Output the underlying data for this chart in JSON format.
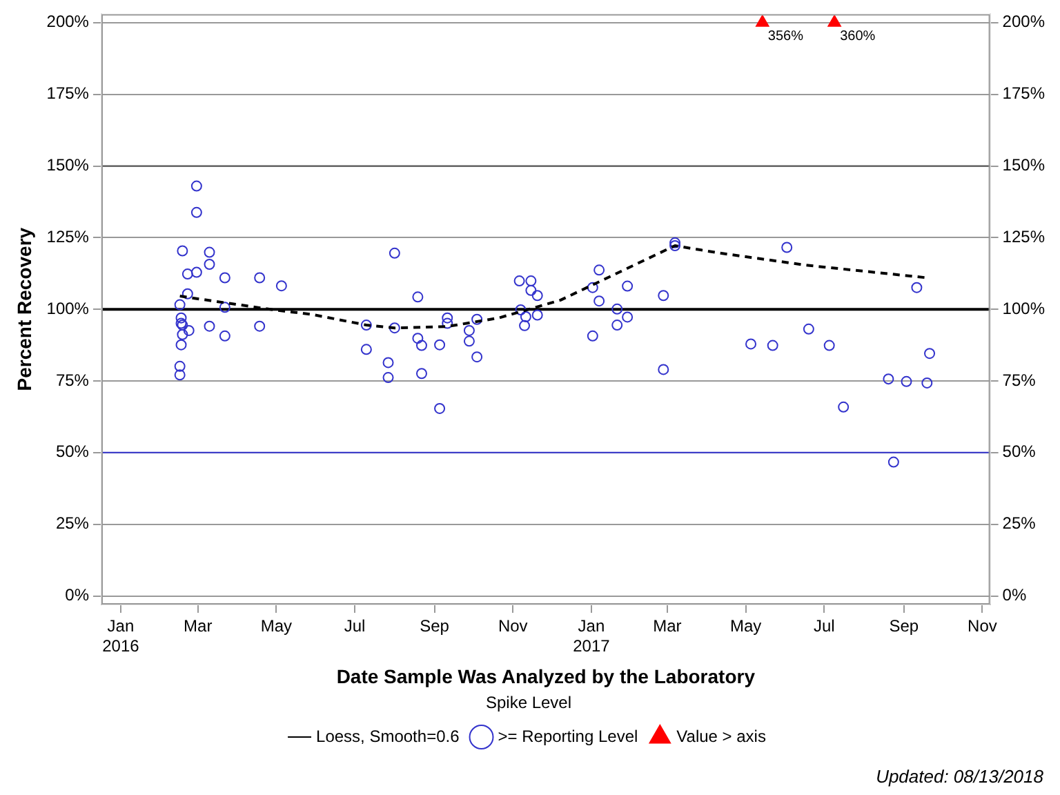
{
  "chart_data": {
    "type": "scatter",
    "xlabel": "Date Sample Was Analyzed by the Laboratory",
    "ylabel": "Percent Recovery",
    "legend_title": "Spike Level",
    "legend": "bottom",
    "grid": "y",
    "xlim": [
      "2015-12-17",
      "2017-11-07"
    ],
    "xticks": [
      {
        "value": "2016-01-01",
        "label": "Jan\n2016"
      },
      {
        "value": "2016-03-01",
        "label": "Mar"
      },
      {
        "value": "2016-05-01",
        "label": "May"
      },
      {
        "value": "2016-07-01",
        "label": "Jul"
      },
      {
        "value": "2016-09-01",
        "label": "Sep"
      },
      {
        "value": "2016-11-01",
        "label": "Nov"
      },
      {
        "value": "2017-01-01",
        "label": "Jan\n2017"
      },
      {
        "value": "2017-03-01",
        "label": "Mar"
      },
      {
        "value": "2017-05-01",
        "label": "May"
      },
      {
        "value": "2017-07-01",
        "label": "Jul"
      },
      {
        "value": "2017-09-01",
        "label": "Sep"
      },
      {
        "value": "2017-11-01",
        "label": "Nov"
      }
    ],
    "ylim": [
      -3,
      203
    ],
    "yticks": [
      {
        "value": 0,
        "label": "0%"
      },
      {
        "value": 25,
        "label": "25%"
      },
      {
        "value": 50,
        "label": "50%"
      },
      {
        "value": 75,
        "label": "75%"
      },
      {
        "value": 100,
        "label": "100%"
      },
      {
        "value": 125,
        "label": "125%"
      },
      {
        "value": 150,
        "label": "150%"
      },
      {
        "value": 175,
        "label": "175%"
      },
      {
        "value": 200,
        "label": "200%"
      }
    ],
    "y2lim": [
      -3,
      203
    ],
    "y2ticks": [
      {
        "value": 0,
        "label": "0%"
      },
      {
        "value": 25,
        "label": "25%"
      },
      {
        "value": 50,
        "label": "50%"
      },
      {
        "value": 75,
        "label": "75%"
      },
      {
        "value": 100,
        "label": "100%"
      },
      {
        "value": 125,
        "label": "125%"
      },
      {
        "value": 150,
        "label": "150%"
      },
      {
        "value": 175,
        "label": "175%"
      },
      {
        "value": 200,
        "label": "200%"
      }
    ],
    "ref_lines": [
      {
        "axis": "y",
        "value": 100,
        "color": "#000000"
      },
      {
        "axis": "y",
        "value": 150,
        "color": "#555555"
      },
      {
        "axis": "y",
        "value": 50,
        "color": "#3333cc"
      }
    ],
    "series": [
      {
        "name": "Loess, Smooth=0.6",
        "type": "line",
        "color": "#000000",
        "line_style": "dashed",
        "marker": "none",
        "x": [
          "2016-02-16",
          "2016-03-22",
          "2016-05-01",
          "2016-05-29",
          "2016-07-10",
          "2016-08-01",
          "2016-09-11",
          "2016-10-21",
          "2016-12-08",
          "2017-03-07",
          "2017-04-11",
          "2017-06-17",
          "2017-09-19"
        ],
        "values": [
          104.6,
          102.3,
          99.7,
          98.2,
          94.5,
          93.5,
          94.0,
          97.0,
          103.2,
          122.2,
          119.6,
          115.4,
          111.0
        ]
      },
      {
        "name": ">= Reporting Level",
        "color": "#3333cc",
        "marker": "circle",
        "x": [
          "2016-02-29",
          "2016-02-29",
          "2016-02-18",
          "2016-03-10",
          "2016-03-10",
          "2016-02-22",
          "2016-02-29",
          "2016-03-22",
          "2016-04-18",
          "2016-05-05",
          "2016-02-22",
          "2016-02-16",
          "2016-03-22",
          "2016-02-17",
          "2016-02-17",
          "2016-02-18",
          "2016-02-23",
          "2016-03-10",
          "2016-04-18",
          "2016-02-18",
          "2016-03-22",
          "2016-02-17",
          "2016-02-16",
          "2016-02-16",
          "2016-08-01",
          "2016-08-19",
          "2016-07-10",
          "2016-08-01",
          "2016-09-11",
          "2016-09-11",
          "2016-10-04",
          "2016-09-28",
          "2016-09-28",
          "2016-10-04",
          "2016-07-10",
          "2016-08-19",
          "2016-08-22",
          "2016-09-05",
          "2016-07-27",
          "2016-07-27",
          "2016-08-22",
          "2016-09-05",
          "2016-11-06",
          "2016-11-15",
          "2016-11-15",
          "2016-11-20",
          "2016-11-07",
          "2016-11-11",
          "2016-11-10",
          "2016-11-20",
          "2017-01-02",
          "2017-01-07",
          "2017-01-07",
          "2017-01-02",
          "2017-01-21",
          "2017-01-21",
          "2017-01-29",
          "2017-01-29",
          "2017-02-26",
          "2017-02-26",
          "2017-03-07",
          "2017-03-07",
          "2017-05-05",
          "2017-05-22",
          "2017-06-02",
          "2017-09-11",
          "2017-06-19",
          "2017-07-05",
          "2017-07-16",
          "2017-08-20",
          "2017-09-03",
          "2017-09-19",
          "2017-09-21",
          "2017-08-24"
        ],
        "values": [
          143.0,
          133.8,
          120.4,
          119.9,
          115.7,
          112.3,
          112.9,
          111.0,
          111.0,
          108.2,
          105.4,
          101.6,
          100.7,
          97.0,
          95.1,
          94.5,
          92.6,
          94.1,
          94.1,
          91.2,
          90.7,
          87.6,
          80.1,
          77.1,
          119.6,
          104.3,
          94.5,
          93.5,
          97.0,
          95.1,
          96.5,
          92.6,
          88.9,
          83.4,
          86.0,
          89.9,
          87.4,
          87.6,
          81.4,
          76.2,
          77.6,
          65.4,
          109.9,
          109.9,
          106.6,
          104.8,
          99.8,
          97.4,
          94.3,
          98.0,
          107.6,
          113.7,
          102.9,
          90.7,
          100.1,
          94.5,
          108.1,
          97.3,
          104.8,
          79.0,
          123.2,
          122.2,
          87.9,
          87.4,
          121.6,
          107.6,
          93.1,
          87.4,
          65.9,
          75.7,
          74.8,
          74.3,
          84.6,
          46.7
        ]
      },
      {
        "name": "Value > axis",
        "color": "#ff0000",
        "marker": "triangle",
        "x": [
          "2017-05-14",
          "2017-07-09"
        ],
        "values": [
          200,
          200
        ]
      }
    ],
    "annotations": [
      {
        "text": "356%",
        "x": "2017-05-14",
        "y": 200
      },
      {
        "text": "360%",
        "x": "2017-07-09",
        "y": 200
      },
      "Updated: 08/13/2018"
    ]
  }
}
